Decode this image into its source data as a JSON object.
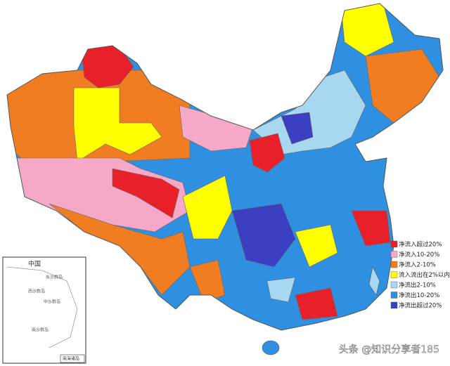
{
  "legend": {
    "items": [
      {
        "label": "净流入超过20%",
        "color": "#e8202a"
      },
      {
        "label": "净流入10-20%",
        "color": "#f5a8c8"
      },
      {
        "label": "净流入2-10%",
        "color": "#f07d22"
      },
      {
        "label": "流入流出在2%以内",
        "color": "#ffff00"
      },
      {
        "label": "净流出2-10%",
        "color": "#a8d8f0"
      },
      {
        "label": "净流出10-20%",
        "color": "#2f8fe0"
      },
      {
        "label": "净流出超过20%",
        "color": "#3b3fc2"
      }
    ]
  },
  "inset": {
    "title": "中国",
    "islands": [
      "东沙群岛",
      "西沙群岛",
      "中沙群岛",
      "南沙群岛"
    ],
    "label": "南海诸岛"
  },
  "watermark": "头条 @知识分享者185"
}
